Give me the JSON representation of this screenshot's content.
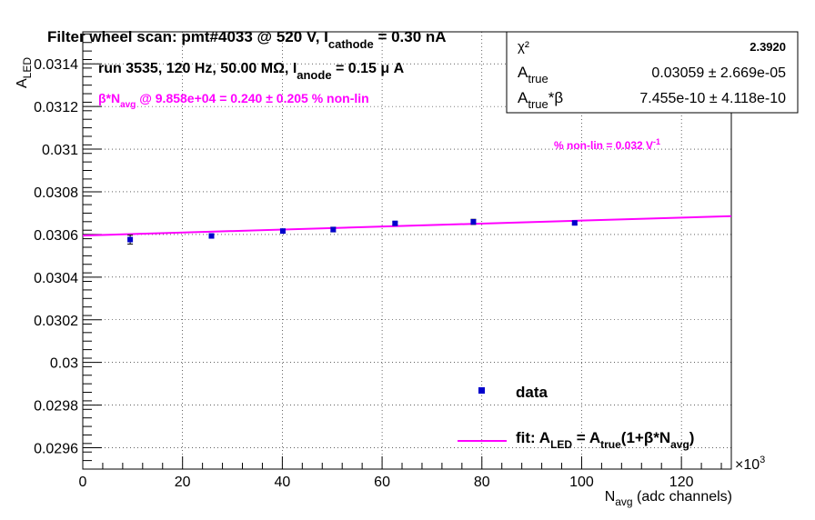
{
  "chart_data": {
    "type": "scatter",
    "title": {
      "main": "Filter wheel scan: pmt#4033 @   520 V, I",
      "sub": "cathode",
      "tail": " = 0.30 nA"
    },
    "run_info": {
      "main": "run 3535, 120 Hz, 50.00 MΩ, I",
      "sub": "anode",
      "tail": " = 0.15 μ A"
    },
    "nonlin_line": {
      "beta": "β*N",
      "sub": "avg",
      "tail": " @ 9.858e+04 = 0.240 ± 0.205 % non-lin"
    },
    "slope_label": {
      "main": "% non-lin = 0.032 V",
      "sup": "-1"
    },
    "xlabel": {
      "main": "N",
      "sub": "avg",
      "tail": " (adc channels)"
    },
    "ylabel": {
      "main": "A",
      "sub": "LED"
    },
    "x_multiplier": {
      "main": "×10",
      "sup": "3"
    },
    "xlim": [
      0,
      130000
    ],
    "ylim": [
      0.0295,
      0.03155
    ],
    "x_ticks": [
      0,
      20000,
      40000,
      60000,
      80000,
      100000,
      120000
    ],
    "x_tick_labels": [
      "0",
      "20",
      "40",
      "60",
      "80",
      "100",
      "120"
    ],
    "y_ticks": [
      0.0296,
      0.0298,
      0.03,
      0.0302,
      0.0304,
      0.0306,
      0.0308,
      0.031,
      0.0312,
      0.0314
    ],
    "y_tick_labels": [
      "0.0296",
      "0.0298",
      "0.03",
      "0.0302",
      "0.0304",
      "0.0306",
      "0.0308",
      "0.031",
      "0.0312",
      "0.0314"
    ],
    "grid": true,
    "series": [
      {
        "name": "data",
        "color": "#0000cc",
        "x": [
          9500,
          25800,
          40100,
          50200,
          62600,
          78300,
          98600
        ],
        "y": [
          0.030576,
          0.030593,
          0.030616,
          0.030623,
          0.030652,
          0.030659,
          0.030654
        ],
        "yerr": [
          2.1e-05,
          9e-06,
          8e-06,
          1.1e-05,
          7e-06,
          1.2e-05,
          7e-06
        ]
      }
    ],
    "fit": {
      "name": "fit",
      "color": "#ff00ff",
      "x": [
        0,
        130000
      ],
      "y": [
        0.030595,
        0.030686
      ]
    },
    "stats_box": {
      "chi2_label": "χ²",
      "chi2_value": "2.3920",
      "atrue_label": "A",
      "atrue_sub": "true",
      "atrue_value": "0.03059 ± 2.669e-05",
      "atrue_beta_label": "A",
      "atrue_beta_sub": "true",
      "atrue_beta_tail": "*β",
      "atrue_beta_value": "7.455e-10 ± 4.118e-10"
    },
    "legend": {
      "placement": "bottom-right",
      "data_label": "data",
      "fit_label": {
        "p1": "fit: A",
        "s1": "LED",
        "p2": " = A",
        "s2": "true",
        "p3": "(1+β*N",
        "s3": "avg",
        "p4": ")"
      }
    }
  }
}
